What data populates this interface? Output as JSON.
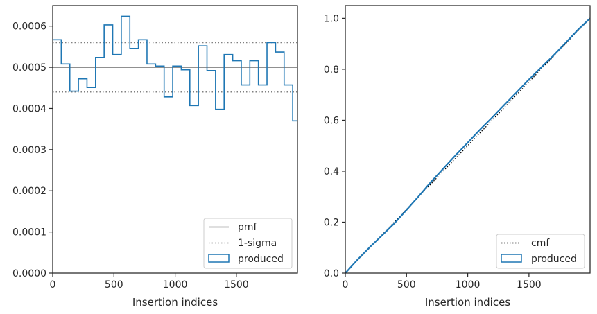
{
  "chart_data": [
    {
      "type": "line",
      "subtype": "step-histogram",
      "xlabel": "Insertion indices",
      "ylabel": "",
      "xlim": [
        0,
        1999
      ],
      "ylim": [
        0,
        0.00065
      ],
      "xticks": [
        0,
        500,
        1000,
        1500
      ],
      "xtick_labels": [
        "0",
        "500",
        "1000",
        "1500"
      ],
      "yticks": [
        0,
        0.0001,
        0.0002,
        0.0003,
        0.0004,
        0.0005,
        0.0006
      ],
      "ytick_labels": [
        "0.0000",
        "0.0001",
        "0.0002",
        "0.0003",
        "0.0004",
        "0.0005",
        "0.0006"
      ],
      "grid": false,
      "legend_position": "lower-right",
      "series": [
        {
          "name": "pmf",
          "kind": "hline",
          "value": 0.0005,
          "color": "#808080",
          "style": "solid"
        },
        {
          "name": "1-sigma",
          "kind": "hlines",
          "values": [
            0.00044,
            0.00056
          ],
          "color": "#808080",
          "style": "dotted"
        },
        {
          "name": "produced",
          "kind": "step",
          "color": "#1f77b4",
          "bin_edges": [
            0,
            70,
            140,
            210,
            280,
            350,
            420,
            490,
            560,
            630,
            700,
            770,
            840,
            910,
            980,
            1050,
            1120,
            1190,
            1260,
            1330,
            1400,
            1470,
            1540,
            1610,
            1680,
            1750,
            1820,
            1890,
            1960,
            1999
          ],
          "values": [
            0.000567,
            0.000508,
            0.000442,
            0.000472,
            0.000451,
            0.000524,
            0.000603,
            0.000531,
            0.000624,
            0.000546,
            0.000567,
            0.000508,
            0.000503,
            0.000428,
            0.000503,
            0.000494,
            0.000407,
            0.000552,
            0.000492,
            0.000398,
            0.000531,
            0.000516,
            0.000457,
            0.000516,
            0.000457,
            0.00056,
            0.000537,
            0.000457,
            0.00037
          ]
        }
      ]
    },
    {
      "type": "line",
      "xlabel": "Insertion indices",
      "ylabel": "",
      "xlim": [
        0,
        1999
      ],
      "ylim": [
        0,
        1.05
      ],
      "xticks": [
        0,
        500,
        1000,
        1500
      ],
      "xtick_labels": [
        "0",
        "500",
        "1000",
        "1500"
      ],
      "yticks": [
        0,
        0.2,
        0.4,
        0.6,
        0.8,
        1.0
      ],
      "ytick_labels": [
        "0.0",
        "0.2",
        "0.4",
        "0.6",
        "0.8",
        "1.0"
      ],
      "grid": false,
      "legend_position": "lower-right",
      "series": [
        {
          "name": "cmf",
          "color": "#000000",
          "style": "dotted",
          "x": [
            0,
            1999
          ],
          "y": [
            0,
            1.0
          ]
        },
        {
          "name": "produced",
          "color": "#1f77b4",
          "style": "solid",
          "x": [
            0,
            100,
            200,
            300,
            400,
            500,
            600,
            700,
            800,
            900,
            1000,
            1100,
            1200,
            1300,
            1400,
            1500,
            1600,
            1700,
            1800,
            1900,
            1999
          ],
          "y": [
            0,
            0.053,
            0.102,
            0.148,
            0.195,
            0.248,
            0.302,
            0.358,
            0.41,
            0.462,
            0.512,
            0.563,
            0.611,
            0.661,
            0.71,
            0.76,
            0.807,
            0.854,
            0.904,
            0.955,
            1.0
          ]
        }
      ]
    }
  ]
}
